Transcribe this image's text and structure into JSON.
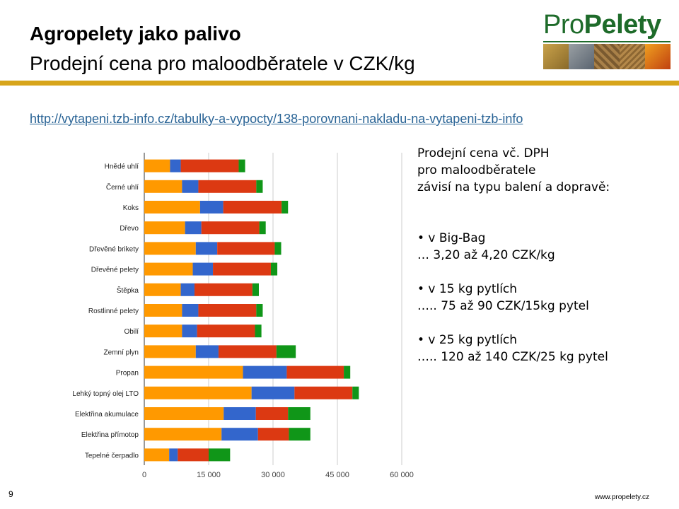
{
  "slide": {
    "title": "Agropelety jako palivo",
    "subtitle": "Prodejní cena pro maloodběratele v CZK/kg",
    "url": "http://vytapeni.tzb-info.cz/tabulky-a-vypocty/138-porovnani-nakladu-na-vytapeni-tzb-info",
    "page_number": "9",
    "footer": "www.propelety.cz",
    "accent_color": "#d7a51b"
  },
  "logo": {
    "part1": "Pro",
    "part2": "Pelety",
    "color": "#1e6b2a"
  },
  "side_text": {
    "intro": [
      "Prodejní cena vč. DPH",
      "pro maloodběratele",
      "závisí na typu balení a dopravě:"
    ],
    "items": [
      {
        "bullet": "• v Big-Bag",
        "detail": "… 3,20 až 4,20 CZK/kg"
      },
      {
        "bullet": "• v 15 kg pytlích",
        "detail": "….. 75 až 90 CZK/15kg pytel"
      },
      {
        "bullet": "• v 25 kg pytlích",
        "detail": "….. 120 až 140 CZK/25 kg pytel"
      }
    ]
  },
  "chart_data": {
    "type": "bar",
    "orientation": "horizontal",
    "stacked": true,
    "categories": [
      "Hnědé uhlí",
      "Černé uhlí",
      "Koks",
      "Dřevo",
      "Dřevěné brikety",
      "Dřevěné pelety",
      "Štěpka",
      "Rostlinné pelety",
      "Obilí",
      "Zemní plyn",
      "Propan",
      "Lehký topný olej LTO",
      "Elektřina akumulace",
      "Elektřina přímotop",
      "Tepelné čerpadlo"
    ],
    "series": [
      {
        "color": "#ff9900",
        "values": [
          6000,
          8800,
          13000,
          9500,
          12000,
          11300,
          8500,
          8800,
          8800,
          12000,
          23000,
          25000,
          18500,
          18000,
          5800
        ]
      },
      {
        "color": "#3366cc",
        "values": [
          2500,
          3800,
          5400,
          3800,
          5000,
          4700,
          3200,
          3800,
          3500,
          5300,
          10200,
          10000,
          7500,
          8500,
          2000
        ]
      },
      {
        "color": "#dc3912",
        "values": [
          13500,
          13500,
          13600,
          13500,
          13400,
          13500,
          13500,
          13500,
          13500,
          13500,
          13300,
          13500,
          7500,
          7200,
          7200
        ]
      },
      {
        "color": "#109618",
        "values": [
          1500,
          1500,
          1500,
          1500,
          1500,
          1500,
          1500,
          1500,
          1500,
          4500,
          1500,
          1500,
          5200,
          5000,
          5000
        ]
      }
    ],
    "xlim": [
      0,
      60000
    ],
    "xticks": [
      "0",
      "15 000",
      "30 000",
      "45 000",
      "60 000"
    ],
    "grid": true,
    "legend": "none"
  }
}
